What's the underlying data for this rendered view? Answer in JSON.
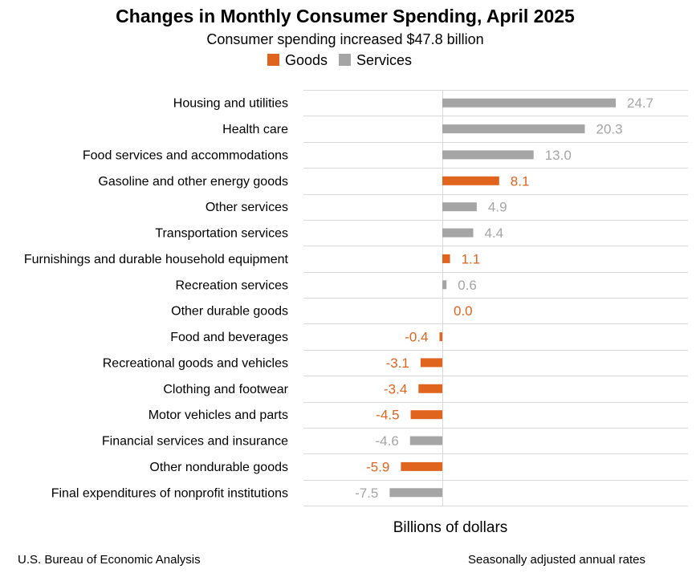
{
  "chart_data": {
    "type": "bar",
    "orientation": "horizontal",
    "title": "Changes in Monthly Consumer Spending, April 2025",
    "subtitle": "Consumer spending increased $47.8 billion",
    "xlabel": "Billions of dollars",
    "ylabel": "",
    "legend": {
      "placement": "top-center",
      "entries": [
        {
          "name": "Goods",
          "color": "#E0641E"
        },
        {
          "name": "Services",
          "color": "#A5A5A5"
        }
      ]
    },
    "grid": true,
    "xlim": [
      -10,
      30
    ],
    "categories": [
      "Housing and utilities",
      "Health care",
      "Food services and accommodations",
      "Gasoline and other energy goods",
      "Other services",
      "Transportation services",
      "Furnishings and durable household equipment",
      "Recreation services",
      "Other durable goods",
      "Food and beverages",
      "Recreational goods and vehicles",
      "Clothing and footwear",
      "Motor vehicles and parts",
      "Financial services and insurance",
      "Other nondurable goods",
      "Final expenditures of nonprofit institutions"
    ],
    "values": [
      24.7,
      20.3,
      13.0,
      8.1,
      4.9,
      4.4,
      1.1,
      0.6,
      0.0,
      -0.4,
      -3.1,
      -3.4,
      -4.5,
      -4.6,
      -5.9,
      -7.5
    ],
    "value_labels": [
      "24.7",
      "20.3",
      "13.0",
      "8.1",
      "4.9",
      "4.4",
      "1.1",
      "0.6",
      "0.0",
      "-0.4",
      "-3.1",
      "-3.4",
      "-4.5",
      "-4.6",
      "-5.9",
      "-7.5"
    ],
    "groups": [
      "Services",
      "Services",
      "Services",
      "Goods",
      "Services",
      "Services",
      "Goods",
      "Services",
      "Goods",
      "Goods",
      "Goods",
      "Goods",
      "Goods",
      "Services",
      "Goods",
      "Services"
    ]
  },
  "footer": {
    "source": "U.S. Bureau of Economic Analysis",
    "note": "Seasonally adjusted annual rates"
  }
}
